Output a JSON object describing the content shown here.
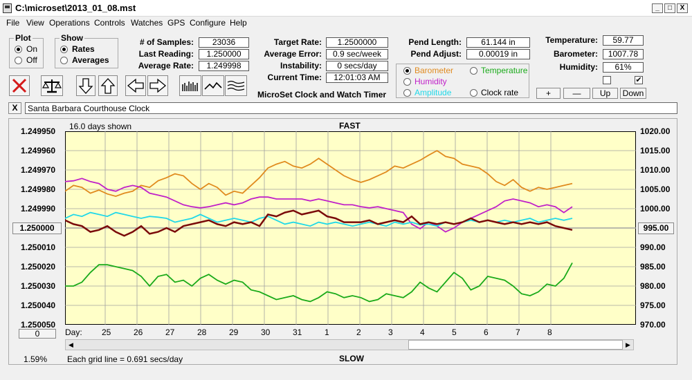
{
  "window": {
    "title": "C:\\microset\\2013_01_08.mst",
    "min": "_",
    "max": "□",
    "close": "X"
  },
  "menu": [
    "File",
    "View",
    "Operations",
    "Controls",
    "Watches",
    "GPS",
    "Configure",
    "Help"
  ],
  "plot_group": {
    "label": "Plot",
    "options": [
      "On",
      "Off"
    ],
    "selected": "On"
  },
  "show_group": {
    "label": "Show",
    "options": [
      "Rates",
      "Averages"
    ],
    "selected": "Rates"
  },
  "stats": [
    {
      "label": "# of Samples:",
      "value": "23036"
    },
    {
      "label": "Last Reading:",
      "value": "1.250000"
    },
    {
      "label": "Average Rate:",
      "value": "1.249998"
    }
  ],
  "targets": [
    {
      "label": "Target Rate:",
      "value": "1.2500000"
    },
    {
      "label": "Average Error:",
      "value": "0.9 sec/week"
    },
    {
      "label": "Instability:",
      "value": "0 secs/day"
    },
    {
      "label": "Current Time:",
      "value": "12:01:03 AM"
    }
  ],
  "pend": [
    {
      "label": "Pend Length:",
      "value": "61.144 in"
    },
    {
      "label": "Pend Adjust:",
      "value": "0.00019 in"
    }
  ],
  "env": [
    {
      "label": "Temperature:",
      "value": "59.77"
    },
    {
      "label": "Barometer:",
      "value": "1007.78"
    },
    {
      "label": "Humidity:",
      "value": "61%"
    }
  ],
  "app_caption": "MicroSet Clock and Watch Timer",
  "sensor_radios": [
    {
      "label": "Barometer",
      "color": "#e08a1e",
      "selected": true
    },
    {
      "label": "Temperature",
      "color": "#1aaa1a",
      "selected": false
    },
    {
      "label": "Humidity",
      "color": "#c020c8",
      "selected": false
    },
    {
      "label": "Clock rate",
      "color": "#000000",
      "selected": false
    },
    {
      "label": "Amplitude",
      "color": "#20d8e8",
      "selected": false
    }
  ],
  "scale_buttons": [
    "+",
    "—",
    "Up",
    "Down"
  ],
  "checkboxes": [
    false,
    true
  ],
  "clock_name": "Santa Barbara Courthouse Clock",
  "clear_button": "X",
  "chart_data": {
    "type": "line",
    "top_label": "FAST",
    "bottom_label": "SLOW",
    "days_shown": "16.0 days shown",
    "grid_note": "Each grid line = 0.691 secs/day",
    "percent": "1.59%",
    "left_axis_ticks": [
      "1.249950",
      "1.249960",
      "1.249970",
      "1.249980",
      "1.249990",
      "1.250000",
      "1.250010",
      "1.250020",
      "1.250030",
      "1.250040",
      "1.250050"
    ],
    "right_axis_ticks": [
      "1020.00",
      "1015.00",
      "1010.00",
      "1005.00",
      "1000.00",
      "995.00",
      "990.00",
      "985.00",
      "980.00",
      "975.00",
      "970.00"
    ],
    "left_center_value": "1.250000",
    "right_center_value": "995.00",
    "bottom_left_value": "0",
    "day_label": "Day:",
    "days": [
      "25",
      "26",
      "27",
      "28",
      "29",
      "30",
      "31",
      "1",
      "2",
      "3",
      "4",
      "5",
      "6",
      "7",
      "8"
    ],
    "left_range": [
      1.24995,
      1.25005
    ],
    "right_range": [
      970,
      1020
    ],
    "series": [
      {
        "color": "#e08a1e",
        "values": [
          1004.5,
          1006.0,
          1005.5,
          1004.0,
          1004.8,
          1003.8,
          1003.2,
          1004.0,
          1004.5,
          1006.0,
          1005.5,
          1007.2,
          1008.0,
          1009.0,
          1008.5,
          1006.5,
          1005.0,
          1006.5,
          1005.5,
          1003.5,
          1004.5,
          1004.0,
          1006.0,
          1008.0,
          1010.5,
          1011.5,
          1012.2,
          1011.0,
          1010.5,
          1011.5,
          1013.0,
          1011.5,
          1010.0,
          1008.5,
          1007.5,
          1006.8,
          1007.5,
          1008.5,
          1009.5,
          1011.0,
          1010.5,
          1011.5,
          1012.5,
          1013.8,
          1015.0,
          1013.5,
          1013.0,
          1011.5,
          1011.0,
          1010.5,
          1009.0,
          1007.0,
          1006.0,
          1007.5,
          1005.5,
          1004.5,
          1005.5,
          1005.0,
          1005.5,
          1006.0,
          1006.5
        ]
      },
      {
        "color": "#c020c8",
        "values": [
          1007.0,
          1007.2,
          1007.8,
          1007.0,
          1006.5,
          1005.0,
          1004.5,
          1005.5,
          1006.0,
          1005.5,
          1004.0,
          1003.5,
          1003.0,
          1002.0,
          1001.0,
          1000.5,
          1000.2,
          1000.5,
          1001.0,
          1001.5,
          1001.0,
          1001.5,
          1002.5,
          1003.0,
          1003.0,
          1002.5,
          1002.5,
          1002.5,
          1002.5,
          1002.0,
          1002.5,
          1002.0,
          1001.5,
          1001.0,
          1001.0,
          1000.5,
          1000.2,
          1000.5,
          1000.0,
          999.5,
          999.0,
          996.0,
          994.8,
          996.5,
          995.5,
          994.0,
          995.0,
          996.5,
          997.5,
          998.5,
          999.5,
          1000.5,
          1002.0,
          1002.5,
          1002.0,
          1001.5,
          1000.5,
          1001.0,
          1000.5,
          999.0,
          1000.5
        ]
      },
      {
        "color": "#20d8e8",
        "values": [
          997.5,
          998.5,
          998.0,
          999.0,
          998.5,
          998.0,
          999.0,
          998.5,
          998.0,
          997.5,
          998.0,
          997.8,
          997.5,
          996.5,
          997.0,
          997.5,
          998.5,
          997.5,
          996.5,
          997.0,
          997.5,
          997.0,
          996.5,
          997.5,
          998.0,
          997.0,
          996.0,
          996.5,
          996.0,
          995.5,
          996.5,
          996.0,
          996.5,
          996.0,
          995.5,
          996.0,
          996.5,
          996.0,
          995.5,
          996.5,
          996.0,
          996.5,
          995.8,
          996.0,
          995.5,
          996.5,
          996.0,
          996.5,
          997.0,
          996.5,
          997.0,
          996.5,
          997.0,
          996.5,
          997.0,
          997.5,
          996.5,
          997.0,
          997.5,
          997.0,
          997.5
        ]
      },
      {
        "color": "#7a0a0a",
        "values": [
          997.0,
          996.0,
          995.5,
          994.0,
          994.5,
          995.5,
          994.0,
          993.0,
          994.0,
          995.5,
          993.5,
          994.0,
          995.0,
          994.0,
          995.5,
          996.0,
          996.5,
          997.0,
          996.0,
          995.5,
          996.5,
          996.0,
          996.5,
          995.5,
          998.5,
          998.0,
          999.0,
          999.5,
          998.5,
          999.0,
          999.5,
          998.0,
          997.5,
          996.5,
          996.5,
          996.5,
          997.0,
          996.0,
          996.5,
          997.0,
          996.5,
          998.0,
          996.0,
          996.5,
          996.0,
          996.5,
          996.0,
          996.5,
          997.5,
          996.5,
          997.0,
          996.5,
          996.0,
          996.5,
          996.0,
          996.5,
          996.0,
          996.5,
          995.5,
          995.0,
          994.5
        ]
      },
      {
        "color": "#1aaa1a",
        "values": [
          980.0,
          980.0,
          981.0,
          983.5,
          985.5,
          985.5,
          985.0,
          984.5,
          984.0,
          982.5,
          980.0,
          982.5,
          983.0,
          981.0,
          981.5,
          980.0,
          982.0,
          983.0,
          981.5,
          980.5,
          981.5,
          981.0,
          979.0,
          978.5,
          977.5,
          976.5,
          977.0,
          977.5,
          976.5,
          976.0,
          977.0,
          978.5,
          978.0,
          977.0,
          977.5,
          977.0,
          976.0,
          976.5,
          978.0,
          977.5,
          977.0,
          978.5,
          981.0,
          979.5,
          978.5,
          981.0,
          983.5,
          982.0,
          979.0,
          980.0,
          982.5,
          982.0,
          981.5,
          980.0,
          978.0,
          977.5,
          978.5,
          980.5,
          980.0,
          982.0,
          986.0
        ]
      }
    ]
  }
}
